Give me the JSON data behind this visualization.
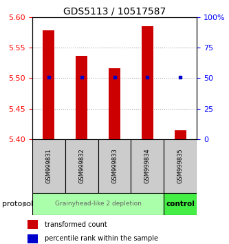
{
  "title": "GDS5113 / 10517587",
  "samples": [
    "GSM999831",
    "GSM999832",
    "GSM999833",
    "GSM999834",
    "GSM999835"
  ],
  "bar_bottoms": [
    5.4,
    5.4,
    5.4,
    5.4,
    5.4
  ],
  "bar_tops": [
    5.578,
    5.537,
    5.516,
    5.585,
    5.415
  ],
  "percentile_y": [
    5.502,
    5.502,
    5.502,
    5.502,
    5.502
  ],
  "ylim": [
    5.4,
    5.6
  ],
  "yticks_left": [
    5.4,
    5.45,
    5.5,
    5.55,
    5.6
  ],
  "yticks_right_pct": [
    0,
    25,
    50,
    75,
    100
  ],
  "bar_color": "#cc0000",
  "percentile_color": "#0000cc",
  "group1_label": "Grainyhead-like 2 depletion",
  "group2_label": "control",
  "group1_color": "#aaffaa",
  "group2_color": "#44ee44",
  "sample_bg_color": "#cccccc",
  "protocol_label": "protocol",
  "legend_red_label": "transformed count",
  "legend_blue_label": "percentile rank within the sample",
  "bar_width": 0.35,
  "title_fontsize": 10,
  "tick_fontsize": 8
}
